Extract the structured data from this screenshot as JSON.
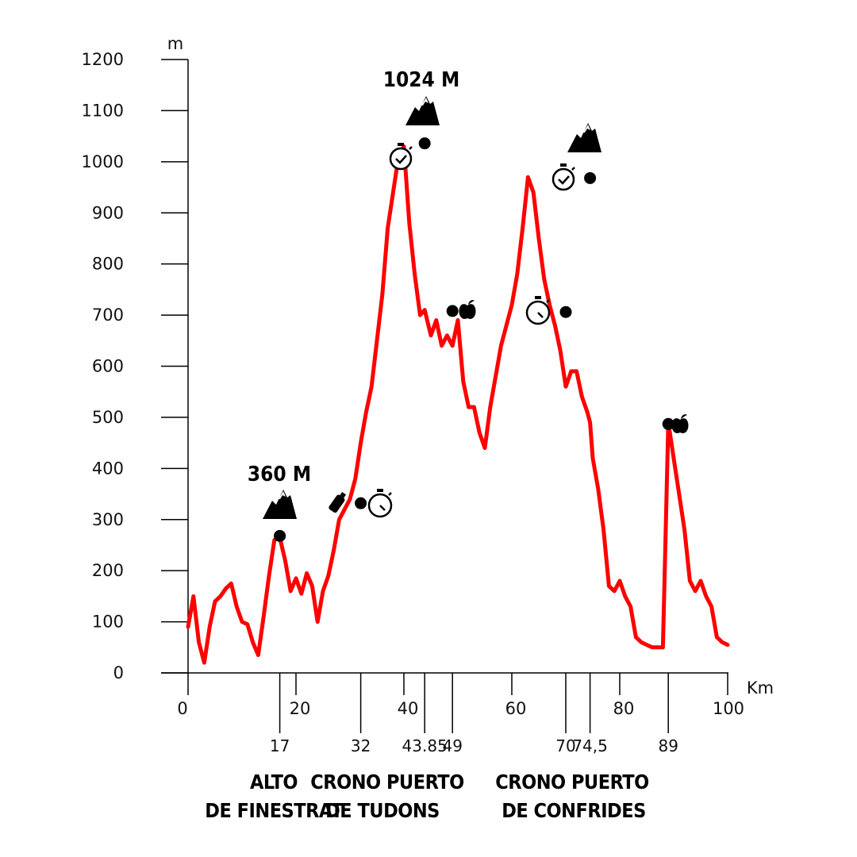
{
  "chart_data": {
    "type": "line",
    "ylabel": "m",
    "xlabel": "Km",
    "xlim": [
      0,
      100
    ],
    "ylim": [
      0,
      1200
    ],
    "y_ticks": [
      "0",
      "100",
      "200",
      "300",
      "400",
      "500",
      "600",
      "700",
      "800",
      "900",
      "1000",
      "1100",
      "1200"
    ],
    "x_ticks": [
      "0",
      "20",
      "40",
      "60",
      "80",
      "100"
    ],
    "line_color": "#ff0000",
    "series": [
      {
        "x": [
          0,
          1,
          2,
          3,
          4,
          5,
          6,
          7,
          8,
          9,
          10,
          11,
          12,
          13,
          14,
          15,
          16,
          17,
          18,
          19,
          20,
          21,
          22,
          23,
          24,
          25,
          26,
          27,
          28,
          29,
          30,
          31,
          32,
          33,
          34,
          35,
          36,
          37,
          38,
          39,
          40,
          41,
          42,
          43,
          43.85,
          45,
          46,
          47,
          48,
          49,
          50,
          51,
          52,
          53,
          54,
          55,
          56,
          57,
          58,
          59,
          60,
          61,
          62,
          63,
          64,
          65,
          66,
          67,
          68,
          69,
          70,
          71,
          72,
          73,
          74,
          74.5,
          75,
          76,
          77,
          78,
          79,
          80,
          81,
          82,
          83,
          84,
          85,
          86,
          87,
          88,
          89,
          90,
          91,
          92,
          93,
          94,
          95,
          96,
          97,
          98,
          99,
          100
        ],
        "y": [
          90,
          150,
          60,
          20,
          90,
          140,
          150,
          165,
          175,
          130,
          100,
          95,
          60,
          35,
          110,
          190,
          260,
          265,
          220,
          160,
          185,
          155,
          195,
          170,
          100,
          160,
          190,
          240,
          300,
          320,
          340,
          380,
          450,
          510,
          560,
          650,
          740,
          870,
          940,
          1010,
          1030,
          880,
          780,
          700,
          710,
          660,
          690,
          640,
          660,
          640,
          690,
          570,
          520,
          520,
          470,
          440,
          520,
          580,
          640,
          680,
          720,
          780,
          870,
          970,
          940,
          850,
          770,
          720,
          680,
          630,
          560,
          590,
          590,
          540,
          510,
          490,
          420,
          360,
          280,
          170,
          160,
          180,
          150,
          130,
          70,
          60,
          55,
          50,
          50,
          50,
          490,
          420,
          350,
          280,
          180,
          160,
          180,
          150,
          130,
          70,
          60,
          55
        ]
      }
    ],
    "points": [
      {
        "x": 17,
        "y": 268
      },
      {
        "x": 32,
        "y": 332
      },
      {
        "x": 43.85,
        "y": 1036
      },
      {
        "x": 49,
        "y": 708
      },
      {
        "x": 70,
        "y": 706
      },
      {
        "x": 74.5,
        "y": 968
      },
      {
        "x": 89,
        "y": 487
      }
    ],
    "km_markers": [
      "17",
      "32",
      "43.85",
      "49",
      "70",
      "74,5",
      "89"
    ],
    "peak_labels": [
      "360 M",
      "1024 M"
    ],
    "segment_labels": [
      {
        "line1": "ALTO",
        "line2": "DE FINESTRAT"
      },
      {
        "line1": "CRONO PUERTO",
        "line2": "DE TUDONS"
      },
      {
        "line1": "CRONO  PUERTO",
        "line2": "DE CONFRIDES"
      }
    ],
    "icons": [
      "mountain-icon",
      "mountain-icon",
      "mountain-icon",
      "stopwatch-icon",
      "stopwatch-check-icon",
      "stopwatch-check-icon",
      "stopwatch-icon",
      "apple-icon",
      "apple-icon",
      "drink-bottle-icon"
    ]
  }
}
